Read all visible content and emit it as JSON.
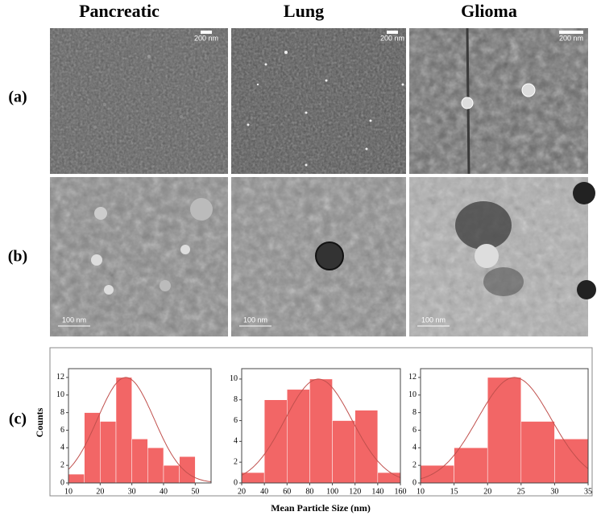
{
  "figure": {
    "columns": [
      "Pancreatic",
      "Lung",
      "Glioma"
    ],
    "rows": [
      "(a)",
      "(b)",
      "(c)"
    ],
    "scale_bars": {
      "sem": [
        "200 nm",
        "200 nm",
        "200 nm"
      ],
      "tem": [
        "100 nm",
        "100 nm",
        "100 nm"
      ]
    }
  },
  "chart_data": [
    {
      "type": "histogram",
      "ylabel": "Counts",
      "bins": [
        10,
        15,
        20,
        25,
        30,
        35,
        40,
        45,
        50
      ],
      "values": [
        1,
        8,
        7,
        12,
        5,
        4,
        2,
        3
      ],
      "color": "#f26666",
      "xlim": [
        10,
        55
      ],
      "xticks": [
        10,
        20,
        30,
        40,
        50
      ],
      "ylim": [
        0,
        13
      ],
      "yticks": [
        0,
        2,
        4,
        6,
        8,
        10,
        12
      ]
    },
    {
      "type": "histogram",
      "xlabel": "Mean Particle Size (nm)",
      "bins": [
        20,
        40,
        60,
        80,
        100,
        120,
        140,
        160
      ],
      "values": [
        1,
        8,
        9,
        10,
        6,
        7,
        1
      ],
      "color": "#f26666",
      "xlim": [
        20,
        160
      ],
      "xticks": [
        20,
        40,
        60,
        80,
        100,
        120,
        140,
        160
      ],
      "ylim": [
        0,
        11
      ],
      "yticks": [
        0,
        2,
        4,
        6,
        8,
        10
      ]
    },
    {
      "type": "histogram",
      "bins": [
        10,
        15,
        20,
        25,
        30,
        35
      ],
      "values": [
        2,
        4,
        12,
        7,
        5
      ],
      "color": "#f26666",
      "xlim": [
        10,
        35
      ],
      "xticks": [
        10,
        15,
        20,
        25,
        30,
        35
      ],
      "ylim": [
        0,
        13
      ],
      "yticks": [
        0,
        2,
        4,
        6,
        8,
        10,
        12
      ]
    }
  ]
}
